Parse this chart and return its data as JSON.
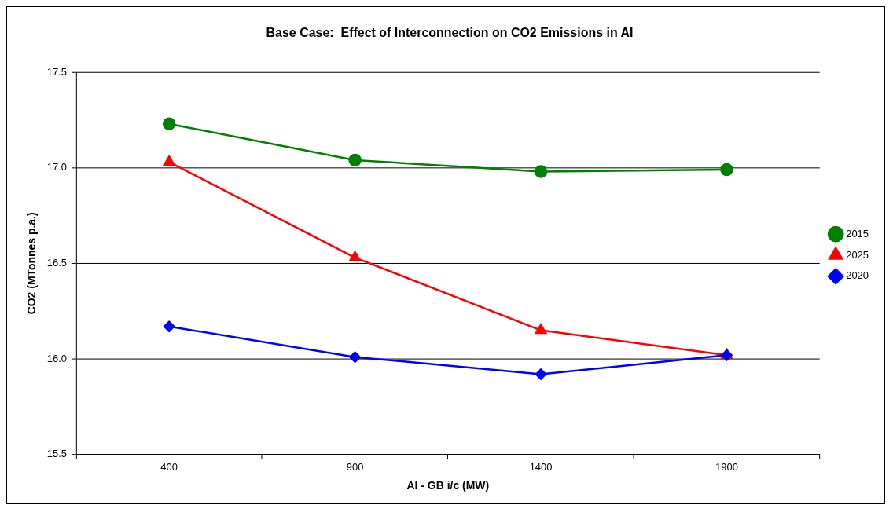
{
  "chart_data": {
    "type": "line",
    "title": "Base Case:  Effect of Interconnection on CO2 Emissions in AI",
    "xlabel": "AI - GB i/c (MW)",
    "ylabel": "CO2 (MTonnes p.a.)",
    "categories": [
      "400",
      "900",
      "1400",
      "1900"
    ],
    "series": [
      {
        "name": "2015",
        "color": "#008000",
        "marker": "circle",
        "values": [
          17.23,
          17.04,
          16.98,
          16.99
        ]
      },
      {
        "name": "2025",
        "color": "#ff0000",
        "marker": "triangle",
        "values": [
          17.03,
          16.53,
          16.15,
          16.02
        ]
      },
      {
        "name": "2020",
        "color": "#0000ff",
        "marker": "diamond",
        "values": [
          16.17,
          16.01,
          15.92,
          16.02
        ]
      }
    ],
    "ylim": [
      15.5,
      17.5
    ],
    "yticks": [
      {
        "value": 15.5,
        "label": "15.5"
      },
      {
        "value": 16,
        "label": "16.0"
      },
      {
        "value": 16.5,
        "label": "16.5"
      },
      {
        "value": 17,
        "label": "17.0"
      },
      {
        "value": 17.5,
        "label": "17.5"
      }
    ],
    "grid": "y",
    "legend": "right",
    "line_style": "solid"
  }
}
